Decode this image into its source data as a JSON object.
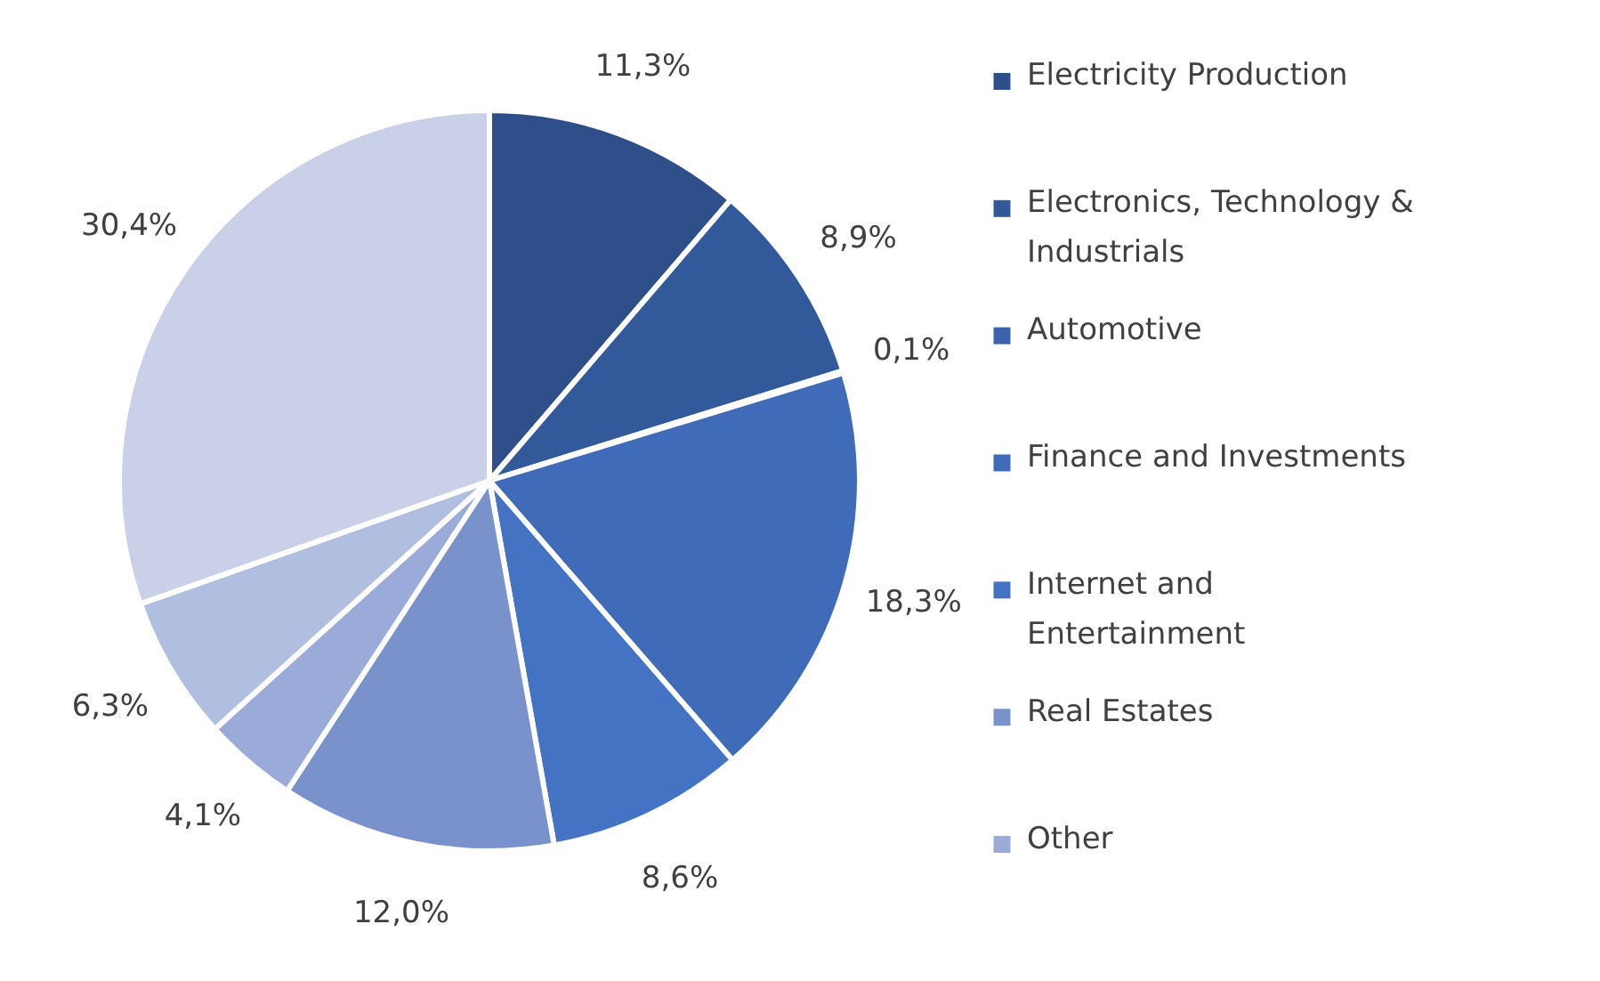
{
  "chart_data": {
    "type": "pie",
    "categories": [
      "Electricity Production",
      "Electronics, Technology & Industrials",
      "Automotive",
      "Finance and Investments",
      "Internet and Entertainment",
      "Real Estates",
      "Other",
      null,
      null
    ],
    "values": [
      11.3,
      8.9,
      0.1,
      18.3,
      8.6,
      12.0,
      4.1,
      6.3,
      30.4
    ],
    "colors": [
      "#2e4f8a",
      "#325a9b",
      "#3a63ab",
      "#3f6bb8",
      "#4473c4",
      "#7a92cc",
      "#9aabd9",
      "#b0bedf",
      "#c9d0e8"
    ],
    "value_labels": [
      "11,3%",
      "8,9%",
      "0,1%",
      "18,3%",
      "8,6%",
      "12,0%",
      "4,1%",
      "6,3%",
      "30,4%"
    ],
    "legend": "right"
  }
}
